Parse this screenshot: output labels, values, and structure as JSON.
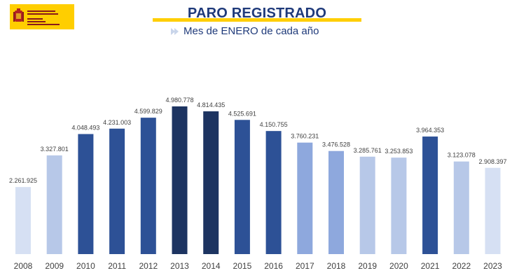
{
  "header": {
    "logo_text": "VICEPRESIDENCIA SEGUNDA DEL GOBIERNO · MINISTERIO DE TRABAJO Y ECONOMÍA SOCIAL",
    "title": "PARO REGISTRADO",
    "subtitle": "Mes de ENERO de cada año"
  },
  "colors": {
    "light": "#d6e0f3",
    "mid": "#b7c8e8",
    "medium": "#8ea8dd",
    "strong": "#2d5196",
    "dark": "#1d3461",
    "accent": "#ffce00",
    "title": "#1f3a7a"
  },
  "chart_data": {
    "type": "bar",
    "title": "PARO REGISTRADO",
    "subtitle": "Mes de ENERO de cada año",
    "categories": [
      "2008",
      "2009",
      "2010",
      "2011",
      "2012",
      "2013",
      "2014",
      "2015",
      "2016",
      "2017",
      "2018",
      "2019",
      "2020",
      "2021",
      "2022",
      "2023"
    ],
    "values": [
      2261925,
      3327801,
      4048493,
      4231003,
      4599829,
      4980778,
      4814435,
      4525691,
      4150755,
      3760231,
      3476528,
      3285761,
      3253853,
      3964353,
      3123078,
      2908397
    ],
    "value_labels": [
      "2.261.925",
      "3.327.801",
      "4.048.493",
      "4.231.003",
      "4.599.829",
      "4.980.778",
      "4.814.435",
      "4.525.691",
      "4.150.755",
      "3.760.231",
      "3.476.528",
      "3.285.761",
      "3.253.853",
      "3.964.353",
      "3.123.078",
      "2.908.397"
    ],
    "bar_colors": [
      "#d6e0f3",
      "#b7c8e8",
      "#2d5196",
      "#2d5196",
      "#2d5196",
      "#1d3461",
      "#1d3461",
      "#2d5196",
      "#2d5196",
      "#8ea8dd",
      "#8ea8dd",
      "#b7c8e8",
      "#b7c8e8",
      "#2d5196",
      "#b7c8e8",
      "#d6e0f3"
    ],
    "xlabel": "",
    "ylabel": "",
    "ylim": [
      0,
      5000000
    ],
    "grid": false,
    "legend": "none"
  }
}
